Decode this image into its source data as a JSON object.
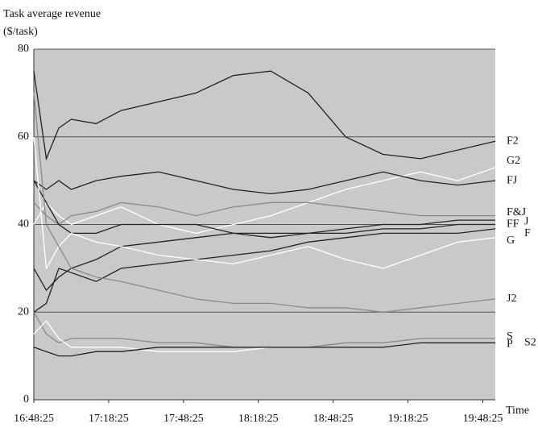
{
  "chart_data": {
    "type": "line",
    "title": "Task average revenue",
    "subtitle": "($/task)",
    "x_label": "Time",
    "x": [
      0,
      5,
      10,
      15,
      25,
      35,
      50,
      65,
      80,
      95,
      110,
      125,
      140,
      155,
      170,
      185
    ],
    "xlim": [
      0,
      185
    ],
    "xticks": [
      {
        "value": 0,
        "label": "16:48:25"
      },
      {
        "value": 30,
        "label": "17:18:25"
      },
      {
        "value": 60,
        "label": "17:48:25"
      },
      {
        "value": 90,
        "label": "18:18:25"
      },
      {
        "value": 120,
        "label": "18:48:25"
      },
      {
        "value": 150,
        "label": "19:18:25"
      },
      {
        "value": 180,
        "label": "19:48:25"
      }
    ],
    "ylim": [
      0,
      80
    ],
    "yticks": [
      0,
      20,
      40,
      60,
      80
    ],
    "grid": true,
    "series": [
      {
        "name": "F2",
        "color": "#222222",
        "values": [
          75,
          55,
          62,
          64,
          63,
          66,
          68,
          70,
          74,
          75,
          70,
          60,
          56,
          55,
          57,
          59
        ]
      },
      {
        "name": "G2",
        "color": "#ffffff",
        "values": [
          40,
          45,
          42,
          40,
          42,
          44,
          40,
          38,
          40,
          42,
          45,
          48,
          50,
          52,
          50,
          53
        ]
      },
      {
        "name": "FJ",
        "color": "#222222",
        "values": [
          50,
          48,
          50,
          48,
          50,
          51,
          52,
          50,
          48,
          47,
          48,
          50,
          52,
          50,
          49,
          50
        ]
      },
      {
        "name": "F&J",
        "color": "#8a8a8a",
        "values": [
          45,
          42,
          40,
          42,
          43,
          45,
          44,
          42,
          44,
          45,
          45,
          44,
          43,
          42,
          42,
          42
        ]
      },
      {
        "name": "J",
        "color": "#222222",
        "values": [
          50,
          45,
          40,
          38,
          38,
          40,
          40,
          40,
          38,
          37,
          38,
          39,
          40,
          40,
          41,
          41
        ]
      },
      {
        "name": "FF",
        "color": "#222222",
        "values": [
          30,
          25,
          28,
          30,
          32,
          35,
          36,
          37,
          38,
          38,
          38,
          38,
          39,
          39,
          40,
          40
        ]
      },
      {
        "name": "F",
        "color": "#222222",
        "values": [
          20,
          22,
          30,
          29,
          27,
          30,
          31,
          32,
          33,
          34,
          36,
          37,
          38,
          38,
          38,
          39
        ]
      },
      {
        "name": "G",
        "color": "#ffffff",
        "values": [
          60,
          30,
          35,
          38,
          36,
          35,
          33,
          32,
          31,
          33,
          35,
          32,
          30,
          33,
          36,
          37
        ]
      },
      {
        "name": "J2",
        "color": "#8a8a8a",
        "values": [
          70,
          40,
          35,
          30,
          28,
          27,
          25,
          23,
          22,
          22,
          21,
          21,
          20,
          21,
          22,
          23
        ]
      },
      {
        "name": "S",
        "color": "#8a8a8a",
        "values": [
          20,
          15,
          13,
          14,
          14,
          14,
          13,
          13,
          12,
          12,
          12,
          13,
          13,
          14,
          14,
          14
        ]
      },
      {
        "name": "S2",
        "color": "#ffffff",
        "values": [
          15,
          18,
          14,
          12,
          12,
          12,
          11,
          11,
          11,
          12,
          12,
          12,
          12,
          13,
          13,
          13
        ]
      },
      {
        "name": "P",
        "color": "#222222",
        "values": [
          12,
          11,
          10,
          10,
          11,
          11,
          12,
          12,
          12,
          12,
          12,
          12,
          12,
          13,
          13,
          13
        ]
      }
    ]
  }
}
